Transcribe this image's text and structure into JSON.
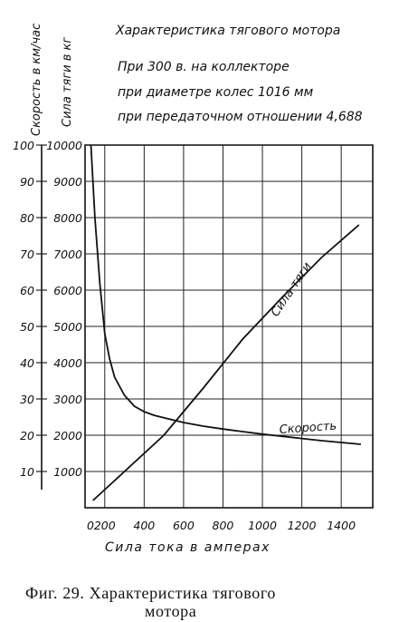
{
  "chart_data": {
    "type": "line",
    "title": "Характеристика тягового мотора",
    "subtitle_lines": [
      "При 300 в. на коллекторе",
      "при диаметре колес 1016 мм",
      "при передаточном отношении 4,688"
    ],
    "xlabel": "Сила тока в амперах",
    "ylabel_left": "Скорость в км/час",
    "ylabel_right": "Сила тяги в кг",
    "xlim": [
      0,
      1600
    ],
    "ylim_speed": [
      0,
      100
    ],
    "ylim_force": [
      0,
      10000
    ],
    "x_ticks": [
      "0",
      "200",
      "400",
      "600",
      "800",
      "1000",
      "1200",
      "1400"
    ],
    "speed_ticks": [
      "10",
      "20",
      "30",
      "40",
      "50",
      "60",
      "70",
      "80",
      "90",
      "100"
    ],
    "force_ticks": [
      "1000",
      "2000",
      "3000",
      "4000",
      "5000",
      "6000",
      "7000",
      "8000",
      "9000",
      "10000"
    ],
    "grid": true,
    "series": [
      {
        "name": "Скорость",
        "axis": "speed",
        "x": [
          130,
          150,
          175,
          200,
          225,
          250,
          300,
          350,
          400,
          450,
          500,
          600,
          700,
          800,
          900,
          1000,
          1100,
          1200,
          1300,
          1400,
          1500
        ],
        "y": [
          100,
          80,
          62,
          48,
          41,
          36,
          31,
          28,
          26.5,
          25.5,
          24.8,
          23.5,
          22.5,
          21.7,
          21,
          20.3,
          19.7,
          19.1,
          18.5,
          18,
          17.5
        ]
      },
      {
        "name": "Сила тяги",
        "axis": "force",
        "x": [
          140,
          300,
          500,
          700,
          900,
          1100,
          1300,
          1490
        ],
        "y": [
          200,
          1000,
          2000,
          3300,
          4650,
          5800,
          6900,
          7800
        ]
      }
    ]
  },
  "caption": {
    "line1": "Фиг. 29. Характеристика тягового",
    "line2": "мотора"
  }
}
